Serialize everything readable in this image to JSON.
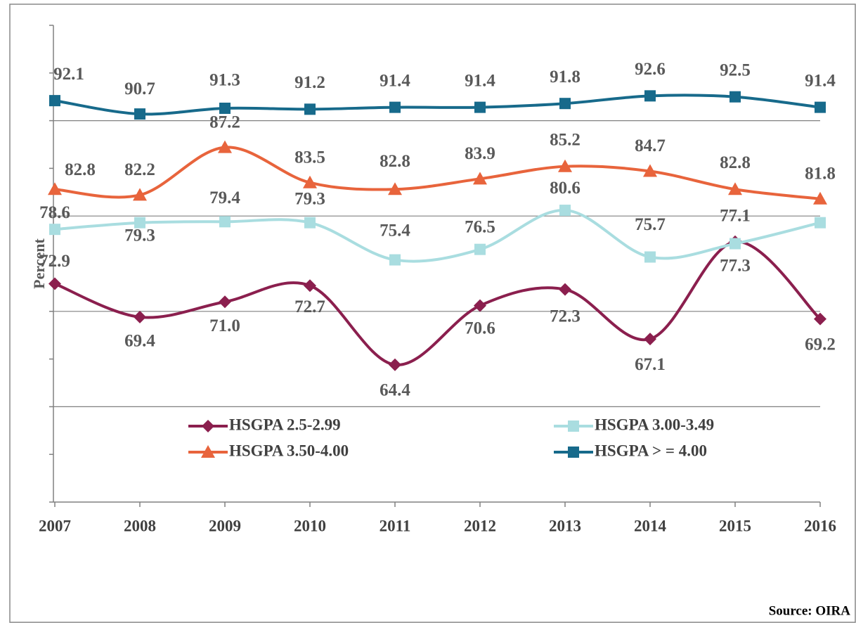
{
  "chart_data": {
    "type": "line",
    "y_label": "Percent",
    "source": "Source: OIRA",
    "categories": [
      "2007",
      "2008",
      "2009",
      "2010",
      "2011",
      "2012",
      "2013",
      "2014",
      "2015",
      "2016"
    ],
    "ylim": [
      50,
      100
    ],
    "yticks": [
      50,
      60,
      70,
      80,
      90,
      100
    ],
    "grid": true,
    "series": [
      {
        "name": "HSGPA 2.5-2.99",
        "color": "#8b1f4e",
        "marker": "diamond",
        "values": [
          72.9,
          69.4,
          71.0,
          72.7,
          64.4,
          70.6,
          72.3,
          67.1,
          77.3,
          69.2
        ],
        "value_labels": [
          "72.9",
          "69.4",
          "71.0",
          "72.7",
          "64.4",
          "70.6",
          "72.3",
          "67.1",
          "77.3",
          "69.2"
        ]
      },
      {
        "name": "HSGPA 3.00-3.49",
        "color": "#a9dde0",
        "marker": "square",
        "values": [
          78.6,
          79.3,
          79.4,
          79.3,
          75.4,
          76.5,
          80.6,
          75.7,
          77.1,
          79.3
        ],
        "value_labels": [
          "78.6",
          "79.3",
          "79.4",
          "79.3",
          "75.4",
          "76.5",
          "80.6",
          "75.7",
          "77.1",
          null
        ]
      },
      {
        "name": "HSGPA 3.50-4.00",
        "color": "#e8643c",
        "marker": "triangle",
        "values": [
          82.8,
          82.2,
          87.2,
          83.5,
          82.8,
          83.9,
          85.2,
          84.7,
          82.8,
          81.8
        ],
        "value_labels": [
          "82.8",
          "82.2",
          "87.2",
          "83.5",
          "82.8",
          "83.9",
          "85.2",
          "84.7",
          "82.8",
          "81.8"
        ]
      },
      {
        "name": "HSGPA > = 4.00",
        "color": "#176a8b",
        "marker": "square",
        "values": [
          92.1,
          90.7,
          91.3,
          91.2,
          91.4,
          91.4,
          91.8,
          92.6,
          92.5,
          91.4
        ],
        "value_labels": [
          "92.1",
          "90.7",
          "91.3",
          "91.2",
          "91.4",
          "91.4",
          "91.8",
          "92.6",
          "92.5",
          "91.4"
        ]
      }
    ]
  }
}
